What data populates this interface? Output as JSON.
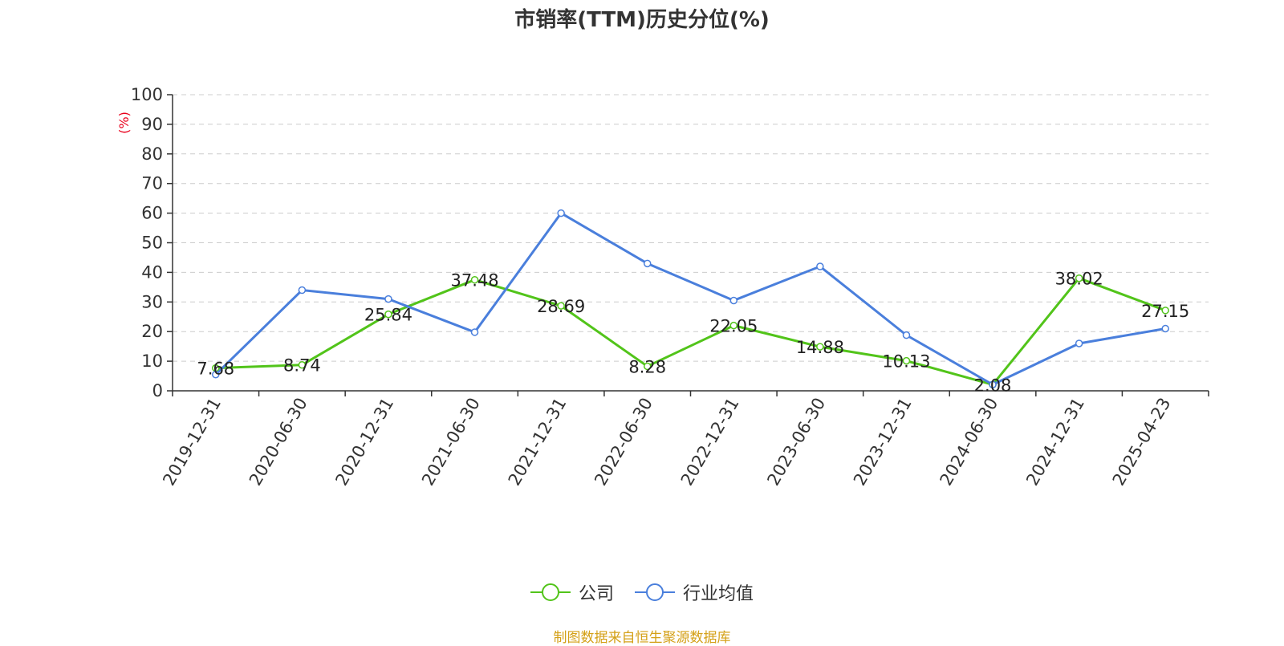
{
  "chart_data": {
    "type": "line",
    "title": "市销率(TTM)历史分位(%)",
    "ylabel": "(%)",
    "xlabel": "",
    "ylim": [
      0,
      100
    ],
    "yticks": [
      0,
      10,
      20,
      30,
      40,
      50,
      60,
      70,
      80,
      90,
      100
    ],
    "categories": [
      "2019-12-31",
      "2020-06-30",
      "2020-12-31",
      "2021-06-30",
      "2021-12-31",
      "2022-06-30",
      "2022-12-31",
      "2023-06-30",
      "2023-12-31",
      "2024-06-30",
      "2024-12-31",
      "2025-04-23"
    ],
    "series": [
      {
        "name": "公司",
        "color": "#52c41a",
        "values": [
          7.68,
          8.74,
          25.84,
          37.48,
          28.69,
          8.28,
          22.05,
          14.88,
          10.13,
          2.08,
          38.02,
          27.15
        ],
        "labels": [
          "7.68",
          "8.74",
          "25.84",
          "37.48",
          "28.69",
          "8.28",
          "22.05",
          "14.88",
          "10.13",
          "2.08",
          "38.02",
          "27.15"
        ]
      },
      {
        "name": "行业均值",
        "color": "#4a7fdc",
        "values": [
          5.5,
          34,
          31,
          19.8,
          60,
          43,
          30.5,
          42,
          18.8,
          2.1,
          16,
          21
        ]
      }
    ],
    "grid": true,
    "legend_position": "bottom-center"
  },
  "source_text": "制图数据来自恒生聚源数据库"
}
